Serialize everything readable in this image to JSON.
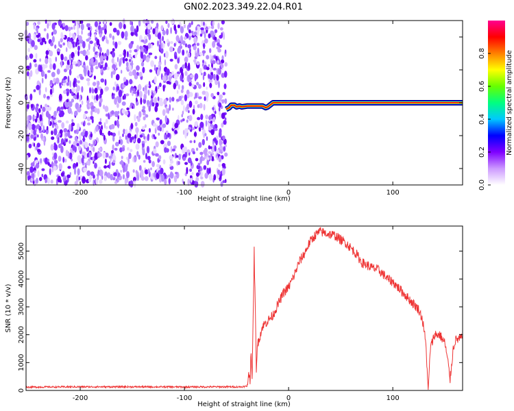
{
  "title": "GN02.2023.349.22.04.R01",
  "chart_data": [
    {
      "type": "heatmap",
      "name": "spectrogram",
      "xlabel": "Height of straight line (km)",
      "ylabel": "Frequency (Hz)",
      "xlim": [
        -252,
        167
      ],
      "ylim": [
        -50,
        50
      ],
      "xticks": [
        -200,
        -100,
        0,
        100
      ],
      "xtick_labels": [
        "-200",
        "-100",
        "0",
        "100"
      ],
      "yticks": [
        -40,
        -20,
        0,
        20,
        40
      ],
      "ytick_labels": [
        "-40",
        "-20",
        "0",
        "20",
        "40"
      ],
      "noise_region_x": [
        -252,
        -60
      ],
      "signal_track": {
        "x": [
          -60,
          -57,
          -55,
          -52,
          -50,
          -47,
          -45,
          -40,
          -35,
          -30,
          -25,
          -22,
          -20,
          -17,
          -15,
          -10,
          0,
          167
        ],
        "frequency": [
          -4,
          -3,
          -1.5,
          -1.5,
          -2.5,
          -2,
          -2.5,
          -2,
          -2,
          -2,
          -2,
          -3,
          -2.5,
          -1,
          0,
          0,
          0,
          0
        ]
      },
      "colorbar": {
        "label": "Normalized spectral amplitude",
        "range": [
          0,
          1
        ],
        "ticks": [
          0.0,
          0.2,
          0.4,
          0.6,
          0.8
        ],
        "tick_labels": [
          "0.0",
          "0.2",
          "0.4",
          "0.6",
          "0.8"
        ],
        "colors": [
          "#ffffff",
          "#cc99ff",
          "#7f00ff",
          "#0000ff",
          "#00c8ff",
          "#00ff80",
          "#66ff00",
          "#ffff00",
          "#ff8000",
          "#ff0000",
          "#ff0090"
        ]
      }
    },
    {
      "type": "line",
      "name": "snr",
      "xlabel": "Height of straight line (km)",
      "ylabel": "SNR (10 * v/v)",
      "xlim": [
        -252,
        167
      ],
      "ylim": [
        0,
        5900
      ],
      "xticks": [
        -200,
        -100,
        0,
        100
      ],
      "xtick_labels": [
        "-200",
        "-100",
        "0",
        "100"
      ],
      "yticks": [
        0,
        1000,
        2000,
        3000,
        4000,
        5000
      ],
      "ytick_labels": [
        "0",
        "1000",
        "2000",
        "3000",
        "4000",
        "5000"
      ],
      "color": "#ee3333",
      "x": [
        -252,
        -200,
        -150,
        -100,
        -60,
        -45,
        -40,
        -38,
        -37,
        -36,
        -35,
        -33,
        -31,
        -30,
        -28,
        -25,
        -20,
        -15,
        -10,
        -5,
        0,
        5,
        10,
        15,
        20,
        25,
        30,
        35,
        40,
        45,
        50,
        55,
        60,
        65,
        70,
        75,
        80,
        85,
        90,
        95,
        100,
        105,
        110,
        115,
        120,
        125,
        128,
        130,
        132,
        134,
        136,
        140,
        145,
        150,
        153,
        155,
        158,
        160,
        167
      ],
      "y": [
        120,
        130,
        130,
        125,
        130,
        130,
        150,
        600,
        400,
        1500,
        300,
        5000,
        800,
        1600,
        1900,
        2300,
        2500,
        2700,
        3100,
        3500,
        3700,
        4100,
        4600,
        4900,
        5300,
        5550,
        5700,
        5650,
        5600,
        5550,
        5400,
        5300,
        5100,
        4900,
        4600,
        4500,
        4400,
        4350,
        4200,
        4000,
        3900,
        3700,
        3500,
        3300,
        3100,
        2900,
        2600,
        2200,
        1500,
        0,
        1500,
        2000,
        2000,
        1700,
        1000,
        400,
        1500,
        1800,
        1900
      ]
    }
  ]
}
